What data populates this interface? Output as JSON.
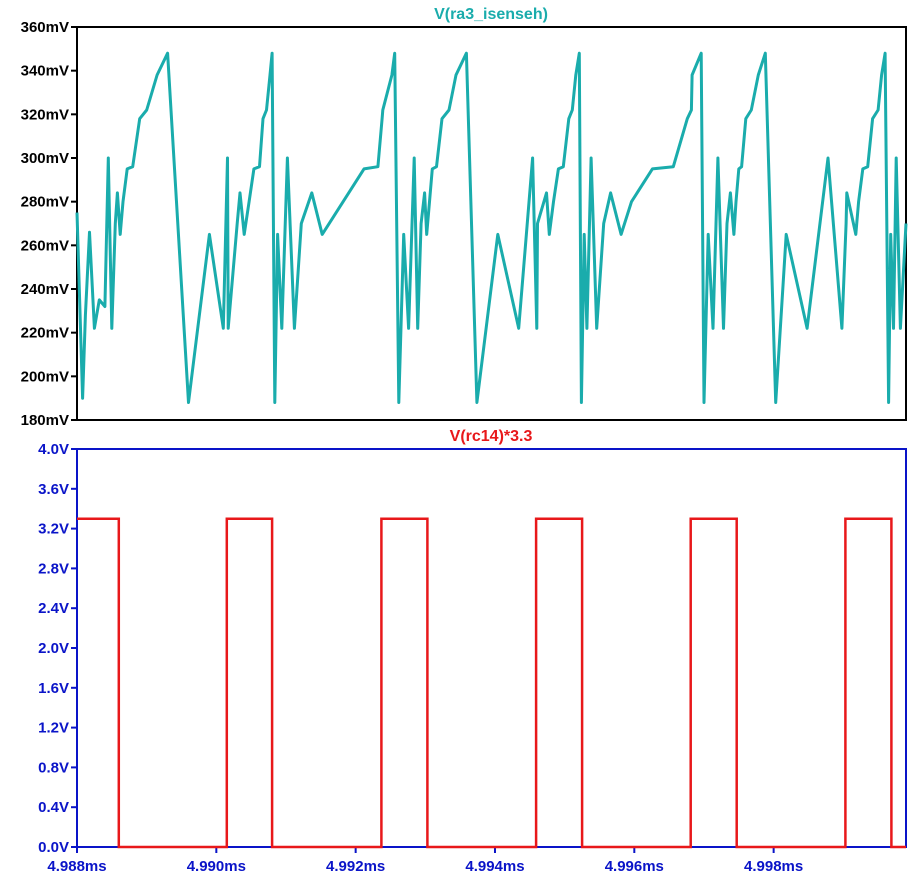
{
  "chart_data": [
    {
      "type": "line",
      "title": "V(ra3_isenseh)",
      "ylabel": "",
      "xlim": [
        4.988,
        4.9999
      ],
      "ylim": [
        180,
        360
      ],
      "y_unit": "mV",
      "yticks": [
        "180mV",
        "200mV",
        "220mV",
        "240mV",
        "260mV",
        "280mV",
        "300mV",
        "320mV",
        "340mV",
        "360mV"
      ],
      "series": [
        {
          "color": "#1aacac",
          "x": [
            4.988,
            4.98808,
            4.98812,
            4.98818,
            4.98825,
            4.98832,
            4.9884,
            4.98845,
            4.9885,
            4.98855,
            4.98858,
            4.98862,
            4.98866,
            4.98872,
            4.9888,
            4.9889,
            4.989,
            4.98915,
            4.9893,
            4.9896,
            4.9899,
            4.9901,
            4.99016,
            4.99017,
            4.9903,
            4.99034,
            4.9904,
            4.99047,
            4.99054,
            4.99062,
            4.99067,
            4.99072,
            4.99077,
            4.9908,
            4.99084,
            4.99088,
            4.99094,
            4.99102,
            4.99112,
            4.99122,
            4.99137,
            4.99152,
            4.99182,
            4.99212,
            4.99232,
            4.99238,
            4.99239,
            4.99252,
            4.99256,
            4.99262,
            4.99269,
            4.99276,
            4.99284,
            4.99289,
            4.99294,
            4.99299,
            4.99302,
            4.99306,
            4.9931,
            4.99316,
            4.99324,
            4.99334,
            4.99344,
            4.99359,
            4.99374,
            4.99404,
            4.99434,
            4.99454,
            4.9946,
            4.99461,
            4.99474,
            4.99478,
            4.99484,
            4.99491,
            4.99498,
            4.99506,
            4.99511,
            4.99516,
            4.99521,
            4.99524,
            4.99528,
            4.99532,
            4.99538,
            4.99546,
            4.99556,
            4.99566,
            4.99581,
            4.99596,
            4.99626,
            4.99656,
            4.99676,
            4.99682,
            4.99683,
            4.99696,
            4.997,
            4.99706,
            4.99713,
            4.9972,
            4.99728,
            4.99733,
            4.99738,
            4.99743,
            4.99746,
            4.9975,
            4.99754,
            4.9976,
            4.99768,
            4.99778,
            4.99788,
            4.99803,
            4.99818,
            4.99848,
            4.99878,
            4.99898,
            4.99904,
            4.99905,
            4.99918,
            4.99922,
            4.99928,
            4.99935,
            4.99942,
            4.9995,
            4.99955,
            4.9996,
            4.99965,
            4.99968,
            4.99972,
            4.99976,
            4.99982,
            4.9999
          ],
          "values": [
            275,
            190,
            228,
            266,
            222,
            235,
            232,
            300,
            222,
            270,
            284,
            265,
            280,
            295,
            296,
            318,
            322,
            338,
            348,
            188,
            265,
            222,
            300,
            222,
            270,
            284,
            265,
            280,
            295,
            296,
            318,
            322,
            338,
            348,
            188,
            265,
            222,
            300,
            222,
            270,
            284,
            265,
            280,
            295,
            296,
            318,
            322,
            338,
            348,
            188,
            265,
            222,
            300,
            222,
            270,
            284,
            265,
            280,
            295,
            296,
            318,
            322,
            338,
            348,
            188,
            265,
            222,
            300,
            222,
            270,
            284,
            265,
            280,
            295,
            296,
            318,
            322,
            338,
            348,
            188,
            265,
            222,
            300,
            222,
            270,
            284,
            265,
            280,
            295,
            296,
            318,
            322,
            338,
            348,
            188,
            265,
            222,
            300,
            222,
            270,
            284,
            265,
            280,
            295,
            296,
            318,
            322,
            338,
            348,
            188,
            265,
            222,
            300,
            222,
            270,
            284,
            265,
            280,
            295,
            296,
            318,
            322,
            338,
            348,
            188,
            265,
            222,
            300,
            222,
            270
          ]
        }
      ]
    },
    {
      "type": "line",
      "title": "V(rc14)*3.3",
      "ylabel": "",
      "xlim": [
        4.988,
        4.9999
      ],
      "ylim": [
        0.0,
        4.0
      ],
      "yticks": [
        "0.0V",
        "0.4V",
        "0.8V",
        "1.2V",
        "1.6V",
        "2.0V",
        "2.4V",
        "2.8V",
        "3.2V",
        "3.6V",
        "4.0V"
      ],
      "xticks": [
        "4.988ms",
        "4.990ms",
        "4.992ms",
        "4.994ms",
        "4.996ms",
        "4.998ms"
      ],
      "series": [
        {
          "color": "#e8181a",
          "x": [
            4.988,
            4.9886,
            4.9886,
            4.99015,
            4.99015,
            4.9908,
            4.9908,
            4.99237,
            4.99237,
            4.99303,
            4.99303,
            4.99459,
            4.99459,
            4.99525,
            4.99525,
            4.99681,
            4.99681,
            4.99747,
            4.99747,
            4.99903,
            4.99903,
            4.99969,
            4.99969,
            4.9999
          ],
          "values": [
            3.3,
            3.3,
            0.0,
            0.0,
            3.3,
            3.3,
            0.0,
            0.0,
            3.3,
            3.3,
            0.0,
            0.0,
            3.3,
            3.3,
            0.0,
            0.0,
            3.3,
            3.3,
            0.0,
            0.0,
            3.3,
            3.3,
            0.0,
            0.0
          ]
        }
      ]
    }
  ],
  "colors": {
    "top_trace": "#1aacac",
    "bottom_trace": "#e8181a",
    "bottom_axis": "#0a14c8",
    "top_axis": "#000000"
  }
}
